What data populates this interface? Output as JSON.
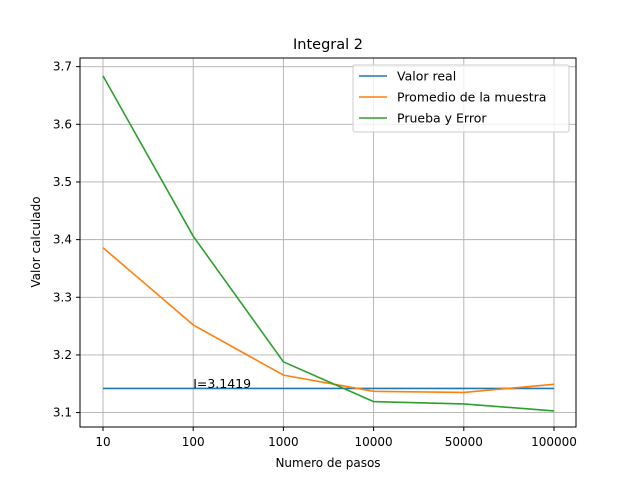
{
  "chart_data": {
    "type": "line",
    "title": "Integral 2",
    "xlabel": "Numero de pasos",
    "ylabel": "Valor calculado",
    "categories": [
      "10",
      "100",
      "1000",
      "10000",
      "50000",
      "100000"
    ],
    "yticks": [
      "3.1",
      "3.2",
      "3.3",
      "3.4",
      "3.5",
      "3.6",
      "3.7"
    ],
    "ylim": [
      3.075,
      3.715
    ],
    "grid": true,
    "legend_position": "top-right",
    "series": [
      {
        "name": "Valor real",
        "color": "#1f77b4",
        "values": [
          3.1419,
          3.1419,
          3.1419,
          3.1419,
          3.1419,
          3.1419
        ]
      },
      {
        "name": "Promedio de la muestra",
        "color": "#ff7f0e",
        "values": [
          3.386,
          3.252,
          3.165,
          3.137,
          3.135,
          3.149
        ]
      },
      {
        "name": "Prueba y Error",
        "color": "#2ca02c",
        "values": [
          3.684,
          3.406,
          3.188,
          3.119,
          3.115,
          3.103
        ]
      }
    ],
    "annotations": [
      {
        "text": "I=3.1419",
        "x": "100",
        "y": 3.1419
      }
    ]
  }
}
